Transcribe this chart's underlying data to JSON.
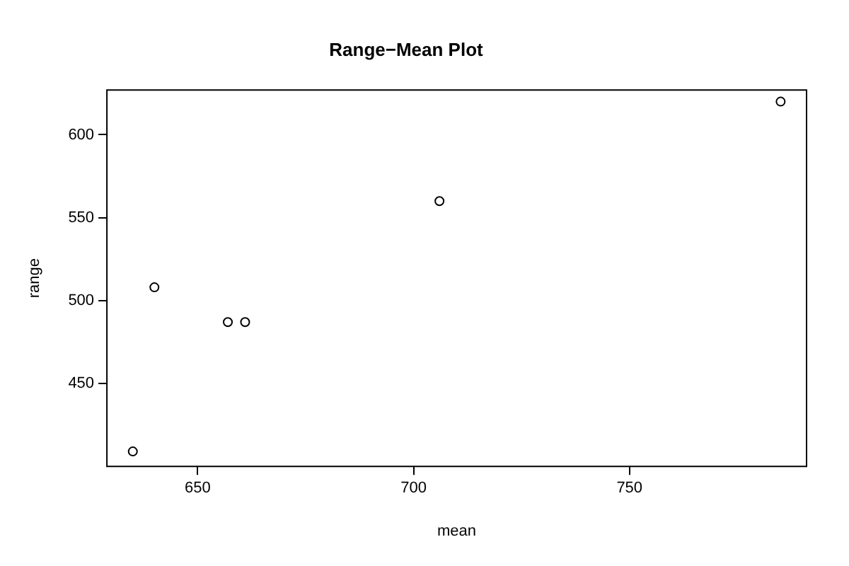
{
  "chart_data": {
    "type": "scatter",
    "title": "Range−Mean Plot",
    "xlabel": "mean",
    "ylabel": "range",
    "x": [
      635,
      640,
      657,
      661,
      706,
      785
    ],
    "values": [
      409,
      508,
      487,
      487,
      560,
      620
    ],
    "color": "#000000",
    "marker": "circle",
    "legend": false,
    "xlim": [
      629,
      791
    ],
    "xticks": [
      650,
      700,
      750
    ],
    "ylim": [
      400,
      627
    ],
    "yticks": [
      450,
      500,
      550,
      600
    ]
  }
}
